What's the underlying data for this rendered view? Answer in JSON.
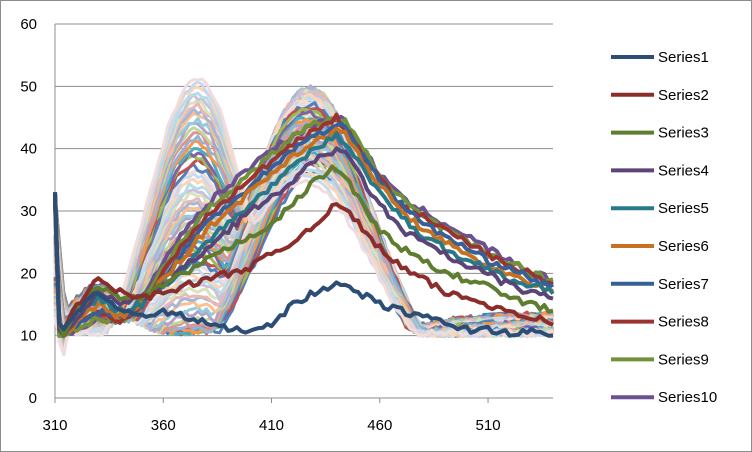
{
  "chart_data": {
    "type": "line",
    "title": "",
    "xlabel": "",
    "ylabel": "",
    "xlim": [
      310,
      540
    ],
    "ylim": [
      0,
      60
    ],
    "x_ticks": [
      310,
      360,
      410,
      460,
      510
    ],
    "y_ticks": [
      0,
      10,
      20,
      30,
      40,
      50,
      60
    ],
    "grid": "horizontal",
    "legend": "right",
    "legend_entries": [
      "Series1",
      "Series2",
      "Series3",
      "Series4",
      "Series5",
      "Series6",
      "Series7",
      "Series8",
      "Series9",
      "Series10"
    ],
    "colors": [
      "#2c4d75",
      "#8b2e2b",
      "#5e7d2f",
      "#5b4476",
      "#27798a",
      "#c5711f",
      "#36609a",
      "#9b3431",
      "#71913a",
      "#6c5190"
    ],
    "extra_series_colors": [
      "#4f81bd",
      "#c0504d",
      "#9bbb59",
      "#8064a2",
      "#4bacc6",
      "#f79646",
      "#95b3d7",
      "#d99694",
      "#c3d69b",
      "#b3a2c7",
      "#93cddd",
      "#fac090",
      "#a5b6d9",
      "#e6b9b8",
      "#d7e4bd",
      "#ccc1da",
      "#b7dee8",
      "#fcd5b5",
      "#c6d9f1",
      "#f2dcdb"
    ],
    "series_count": 70,
    "series": [
      {
        "name": "Series1",
        "x": [
          310,
          312,
          314,
          320,
          330,
          340,
          350,
          360,
          370,
          380,
          390,
          400,
          410,
          420,
          430,
          440,
          445,
          450,
          460,
          470,
          480,
          490,
          500,
          510,
          520,
          530,
          540
        ],
        "values": [
          33,
          12,
          11,
          14,
          17,
          14,
          13,
          14,
          13,
          12,
          11,
          11,
          12,
          15,
          17,
          18,
          18,
          17,
          15,
          14,
          13,
          12,
          11,
          11,
          10.5,
          10.5,
          10
        ]
      },
      {
        "name": "Series2",
        "x": [
          310,
          312,
          314,
          320,
          330,
          340,
          350,
          360,
          370,
          380,
          390,
          400,
          410,
          420,
          430,
          440,
          445,
          450,
          460,
          470,
          480,
          490,
          500,
          510,
          520,
          530,
          540
        ],
        "values": [
          33,
          12,
          11,
          15,
          19,
          17,
          16,
          17,
          18,
          19,
          20,
          21,
          23,
          25,
          28,
          31,
          30,
          28,
          24,
          21,
          19,
          17,
          16,
          15,
          14,
          13,
          12
        ]
      },
      {
        "name": "Series3",
        "x": [
          310,
          312,
          314,
          320,
          330,
          340,
          350,
          360,
          370,
          380,
          390,
          400,
          410,
          420,
          430,
          440,
          445,
          450,
          460,
          470,
          480,
          490,
          500,
          510,
          520,
          530,
          540
        ],
        "values": [
          33,
          12,
          10,
          14,
          18,
          16,
          16,
          18,
          20,
          22,
          24,
          26,
          28,
          31,
          35,
          37,
          35,
          32,
          27,
          24,
          22,
          20,
          19,
          18,
          16,
          15,
          14
        ]
      },
      {
        "name": "Series4",
        "x": [
          310,
          312,
          314,
          320,
          330,
          340,
          350,
          360,
          370,
          380,
          390,
          400,
          410,
          420,
          430,
          440,
          445,
          450,
          460,
          470,
          480,
          490,
          500,
          510,
          520,
          530,
          540
        ],
        "values": [
          33,
          11,
          10,
          13,
          17,
          15,
          16,
          18,
          21,
          24,
          27,
          30,
          32,
          35,
          38,
          40,
          39,
          36,
          31,
          27,
          25,
          23,
          21,
          20,
          18,
          17,
          16
        ]
      },
      {
        "name": "Series5",
        "x": [
          310,
          312,
          314,
          320,
          330,
          340,
          350,
          360,
          370,
          380,
          390,
          400,
          410,
          420,
          430,
          440,
          445,
          450,
          460,
          470,
          480,
          490,
          500,
          510,
          520,
          530,
          540
        ],
        "values": [
          33,
          11,
          10,
          13,
          16,
          14,
          15,
          18,
          21,
          25,
          28,
          31,
          34,
          37,
          40,
          42,
          41,
          38,
          33,
          29,
          26,
          24,
          22,
          21,
          19,
          18,
          17
        ]
      },
      {
        "name": "Series6",
        "x": [
          310,
          312,
          314,
          320,
          330,
          340,
          350,
          360,
          370,
          380,
          390,
          400,
          410,
          420,
          430,
          440,
          445,
          450,
          460,
          470,
          480,
          490,
          500,
          510,
          520,
          530,
          540
        ],
        "values": [
          33,
          11,
          10,
          12,
          15,
          13,
          15,
          19,
          23,
          27,
          30,
          33,
          36,
          39,
          41,
          43,
          42,
          39,
          34,
          30,
          27,
          25,
          23,
          21,
          20,
          18,
          17
        ]
      },
      {
        "name": "Series7",
        "x": [
          310,
          312,
          314,
          320,
          330,
          340,
          350,
          360,
          370,
          380,
          390,
          400,
          410,
          420,
          430,
          440,
          445,
          450,
          460,
          470,
          480,
          490,
          500,
          510,
          520,
          530,
          540
        ],
        "values": [
          32,
          11,
          10,
          12,
          14,
          13,
          15,
          19,
          24,
          28,
          31,
          34,
          37,
          40,
          42,
          44,
          43,
          40,
          35,
          31,
          28,
          26,
          24,
          22,
          21,
          19,
          18
        ]
      },
      {
        "name": "Series8",
        "x": [
          310,
          312,
          314,
          320,
          330,
          340,
          350,
          360,
          370,
          380,
          390,
          400,
          410,
          420,
          430,
          440,
          445,
          450,
          460,
          470,
          480,
          490,
          500,
          510,
          520,
          530,
          540
        ],
        "values": [
          32,
          11,
          10,
          12,
          14,
          12,
          15,
          20,
          25,
          29,
          32,
          35,
          38,
          41,
          43,
          45,
          43,
          40,
          35,
          31,
          29,
          27,
          25,
          23,
          21,
          20,
          18
        ]
      },
      {
        "name": "Series9",
        "x": [
          310,
          312,
          314,
          320,
          330,
          340,
          350,
          360,
          370,
          380,
          390,
          400,
          410,
          420,
          430,
          440,
          445,
          450,
          460,
          470,
          480,
          490,
          500,
          510,
          520,
          530,
          540
        ],
        "values": [
          32,
          10,
          10,
          11,
          13,
          12,
          15,
          21,
          26,
          30,
          33,
          36,
          39,
          42,
          44,
          45,
          44,
          41,
          36,
          32,
          29,
          27,
          25,
          23,
          22,
          20,
          19
        ]
      },
      {
        "name": "Series10",
        "x": [
          310,
          312,
          314,
          320,
          330,
          340,
          350,
          360,
          370,
          380,
          390,
          400,
          410,
          420,
          430,
          440,
          445,
          450,
          460,
          470,
          480,
          490,
          500,
          510,
          520,
          530,
          540
        ],
        "values": [
          31,
          10,
          10,
          11,
          13,
          12,
          16,
          22,
          27,
          31,
          34,
          37,
          40,
          42,
          44,
          45,
          44,
          41,
          36,
          32,
          30,
          28,
          26,
          24,
          22,
          20,
          19
        ]
      }
    ]
  }
}
